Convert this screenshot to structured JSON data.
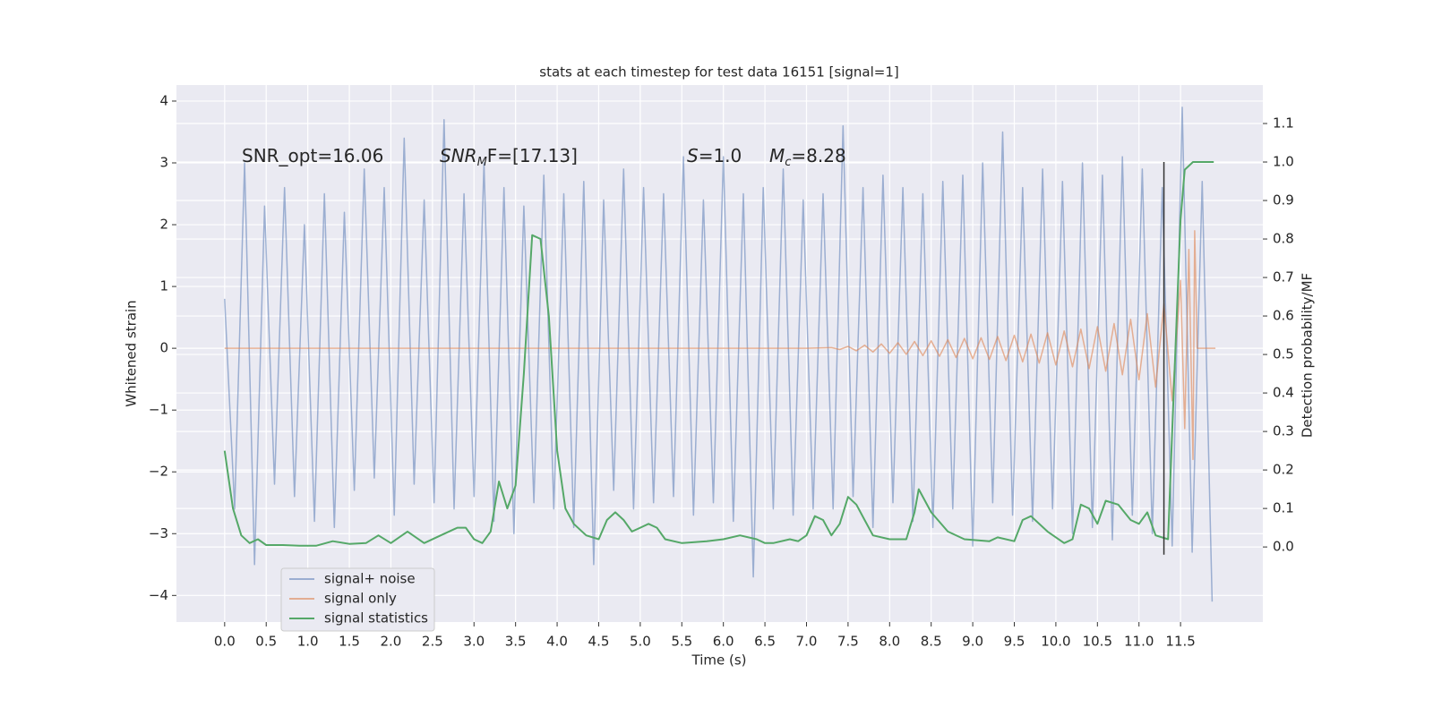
{
  "chart_data": {
    "type": "line",
    "title": "stats at each timestep for test data 16151 [signal=1]",
    "x_label": "Time (s)",
    "y_label": "Whitened strain",
    "y2_label": "Detection probability/MF",
    "annotations": [
      {
        "text": "SNR_opt=16.06"
      },
      {
        "math": "SNR",
        "sub": "M",
        "rest": "F=[17.13]"
      },
      {
        "math": "S",
        "rest": "=1.0"
      },
      {
        "math": "M",
        "sub": "c",
        "rest": "=8.28"
      }
    ],
    "annotation_y": 3.1,
    "xlim": [
      -0.58,
      12.49
    ],
    "ylim": [
      -4.43,
      4.26
    ],
    "y2lim": [
      -0.195,
      1.2
    ],
    "xticks": [
      {
        "value": 0,
        "label": "0.0"
      },
      {
        "value": 0.5,
        "label": "0.5"
      },
      {
        "value": 1,
        "label": "1.0"
      },
      {
        "value": 1.5,
        "label": "1.5"
      },
      {
        "value": 2,
        "label": "2.0"
      },
      {
        "value": 2.5,
        "label": "2.5"
      },
      {
        "value": 3,
        "label": "3.0"
      },
      {
        "value": 3.5,
        "label": "3.5"
      },
      {
        "value": 4,
        "label": "4.0"
      },
      {
        "value": 4.5,
        "label": "4.5"
      },
      {
        "value": 5,
        "label": "5.0"
      },
      {
        "value": 5.5,
        "label": "5.5"
      },
      {
        "value": 6,
        "label": "6.0"
      },
      {
        "value": 6.5,
        "label": "6.5"
      },
      {
        "value": 7,
        "label": "7.0"
      },
      {
        "value": 7.5,
        "label": "7.5"
      },
      {
        "value": 8,
        "label": "8.0"
      },
      {
        "value": 8.5,
        "label": "8.5"
      },
      {
        "value": 9,
        "label": "9.0"
      },
      {
        "value": 9.5,
        "label": "9.5"
      },
      {
        "value": 10,
        "label": "10.0"
      },
      {
        "value": 10.5,
        "label": "10.5"
      },
      {
        "value": 11,
        "label": "11.0"
      },
      {
        "value": 11.5,
        "label": "11.5"
      }
    ],
    "yticks": [
      {
        "value": -4,
        "label": "−4"
      },
      {
        "value": -3,
        "label": "−3"
      },
      {
        "value": -2,
        "label": "−2"
      },
      {
        "value": -1,
        "label": "−1"
      },
      0,
      1,
      2,
      3,
      4
    ],
    "y2ticks": [
      {
        "value": 0,
        "label": "0.0"
      },
      {
        "value": 0.1,
        "label": "0.1"
      },
      {
        "value": 0.2,
        "label": "0.2"
      },
      {
        "value": 0.3,
        "label": "0.3"
      },
      {
        "value": 0.4,
        "label": "0.4"
      },
      {
        "value": 0.5,
        "label": "0.5"
      },
      {
        "value": 0.6,
        "label": "0.6"
      },
      {
        "value": 0.7,
        "label": "0.7"
      },
      {
        "value": 0.8,
        "label": "0.8"
      },
      {
        "value": 0.9,
        "label": "0.9"
      },
      {
        "value": 1,
        "label": "1.0"
      },
      {
        "value": 1.1,
        "label": "1.1"
      }
    ],
    "grid": true,
    "legend": "lower left",
    "series": [
      {
        "name": "signal+ noise",
        "color": "#4c72b0",
        "opacity": 0.5,
        "x": [
          0,
          0.12,
          0.24,
          0.36,
          0.48,
          0.6,
          0.72,
          0.84,
          0.96,
          1.08,
          1.2,
          1.32,
          1.44,
          1.56,
          1.68,
          1.8,
          1.92,
          2.04,
          2.16,
          2.28,
          2.4,
          2.52,
          2.64,
          2.76,
          2.88,
          3,
          3.12,
          3.24,
          3.36,
          3.48,
          3.6,
          3.72,
          3.84,
          3.96,
          4.08,
          4.2,
          4.32,
          4.44,
          4.56,
          4.68,
          4.8,
          4.92,
          5.04,
          5.16,
          5.28,
          5.4,
          5.52,
          5.64,
          5.76,
          5.88,
          6,
          6.12,
          6.24,
          6.36,
          6.48,
          6.6,
          6.72,
          6.84,
          6.96,
          7.08,
          7.2,
          7.32,
          7.44,
          7.56,
          7.68,
          7.8,
          7.92,
          8.04,
          8.16,
          8.28,
          8.4,
          8.52,
          8.64,
          8.76,
          8.88,
          9,
          9.12,
          9.24,
          9.36,
          9.48,
          9.6,
          9.72,
          9.84,
          9.96,
          10.08,
          10.2,
          10.32,
          10.44,
          10.56,
          10.68,
          10.8,
          10.92,
          11.04,
          11.16,
          11.28,
          11.4,
          11.52,
          11.64,
          11.76,
          11.88
        ],
        "values": [
          0.8,
          -2.6,
          3.0,
          -3.5,
          2.3,
          -2.2,
          2.6,
          -2.4,
          2.0,
          -2.8,
          2.5,
          -2.9,
          2.2,
          -2.3,
          2.9,
          -2.1,
          2.6,
          -2.7,
          3.4,
          -2.2,
          2.4,
          -2.5,
          3.7,
          -2.6,
          2.5,
          -2.4,
          3.0,
          -2.8,
          2.6,
          -3.0,
          2.3,
          -2.5,
          2.8,
          -2.6,
          2.5,
          -2.9,
          2.7,
          -3.5,
          2.4,
          -2.3,
          2.9,
          -2.6,
          2.6,
          -2.5,
          2.5,
          -2.4,
          3.1,
          -2.7,
          2.4,
          -2.5,
          3.1,
          -2.8,
          2.5,
          -3.7,
          2.6,
          -2.6,
          2.9,
          -2.7,
          2.4,
          -2.6,
          2.5,
          -2.6,
          3.6,
          -2.4,
          2.6,
          -2.9,
          2.8,
          -2.5,
          2.6,
          -2.8,
          2.5,
          -2.9,
          2.7,
          -2.6,
          2.8,
          -3.2,
          3.0,
          -2.5,
          3.5,
          -2.7,
          2.6,
          -2.8,
          2.9,
          -2.6,
          2.7,
          -3.0,
          3.0,
          -2.9,
          2.8,
          -3.1,
          3.1,
          -2.7,
          2.9,
          -3.0,
          2.6,
          -3.2,
          3.9,
          -3.3,
          2.7,
          -4.1
        ]
      },
      {
        "name": "signal only",
        "color": "#dd8452",
        "opacity": 0.6,
        "x": [
          0,
          7.0,
          7.3,
          7.4,
          7.5,
          7.6,
          7.7,
          7.8,
          7.9,
          8.0,
          8.1,
          8.2,
          8.3,
          8.4,
          8.5,
          8.6,
          8.7,
          8.8,
          8.9,
          9.0,
          9.1,
          9.2,
          9.3,
          9.4,
          9.5,
          9.6,
          9.7,
          9.8,
          9.9,
          10.0,
          10.1,
          10.2,
          10.3,
          10.4,
          10.5,
          10.6,
          10.7,
          10.8,
          10.9,
          11.0,
          11.1,
          11.2,
          11.3,
          11.4,
          11.5,
          11.55,
          11.6,
          11.65,
          11.67,
          11.7,
          11.92
        ],
        "values": [
          0,
          0,
          0.01,
          -0.02,
          0.03,
          -0.04,
          0.05,
          -0.06,
          0.07,
          -0.08,
          0.09,
          -0.1,
          0.11,
          -0.12,
          0.12,
          -0.13,
          0.14,
          -0.15,
          0.16,
          -0.17,
          0.17,
          -0.18,
          0.19,
          -0.2,
          0.21,
          -0.22,
          0.23,
          -0.24,
          0.25,
          -0.27,
          0.28,
          -0.3,
          0.31,
          -0.33,
          0.35,
          -0.37,
          0.4,
          -0.43,
          0.47,
          -0.51,
          0.56,
          -0.63,
          0.72,
          -0.85,
          1.1,
          -1.3,
          1.6,
          -1.8,
          1.9,
          0,
          0
        ]
      },
      {
        "name": "signal statistics",
        "color": "#55a868",
        "opacity": 1,
        "axis": "y2",
        "x": [
          0,
          0.1,
          0.2,
          0.3,
          0.4,
          0.5,
          0.7,
          0.9,
          1.1,
          1.3,
          1.5,
          1.7,
          1.85,
          2.0,
          2.2,
          2.4,
          2.6,
          2.8,
          2.9,
          3.0,
          3.1,
          3.2,
          3.3,
          3.4,
          3.5,
          3.6,
          3.7,
          3.8,
          3.9,
          4.0,
          4.1,
          4.2,
          4.35,
          4.5,
          4.6,
          4.7,
          4.8,
          4.9,
          5.0,
          5.1,
          5.2,
          5.3,
          5.5,
          5.8,
          6.0,
          6.2,
          6.4,
          6.5,
          6.6,
          6.8,
          6.9,
          7.0,
          7.1,
          7.2,
          7.3,
          7.4,
          7.5,
          7.6,
          7.7,
          7.8,
          8.0,
          8.2,
          8.3,
          8.35,
          8.5,
          8.7,
          8.9,
          9.2,
          9.3,
          9.5,
          9.6,
          9.7,
          9.9,
          10.1,
          10.2,
          10.3,
          10.4,
          10.5,
          10.6,
          10.75,
          10.9,
          11.0,
          11.1,
          11.2,
          11.35,
          11.4,
          11.5,
          11.55,
          11.65,
          11.8,
          11.9
        ],
        "values": [
          0.25,
          0.1,
          0.03,
          0.01,
          0.02,
          0.005,
          0.005,
          0.003,
          0.003,
          0.015,
          0.008,
          0.01,
          0.03,
          0.01,
          0.04,
          0.01,
          0.03,
          0.05,
          0.05,
          0.02,
          0.01,
          0.04,
          0.17,
          0.1,
          0.16,
          0.45,
          0.81,
          0.8,
          0.6,
          0.25,
          0.1,
          0.06,
          0.03,
          0.02,
          0.07,
          0.09,
          0.07,
          0.04,
          0.05,
          0.06,
          0.05,
          0.02,
          0.01,
          0.015,
          0.02,
          0.03,
          0.02,
          0.01,
          0.01,
          0.02,
          0.015,
          0.03,
          0.08,
          0.07,
          0.03,
          0.06,
          0.13,
          0.11,
          0.07,
          0.03,
          0.02,
          0.02,
          0.09,
          0.15,
          0.09,
          0.04,
          0.02,
          0.015,
          0.025,
          0.015,
          0.07,
          0.08,
          0.04,
          0.01,
          0.02,
          0.11,
          0.1,
          0.06,
          0.12,
          0.11,
          0.07,
          0.06,
          0.09,
          0.03,
          0.02,
          0.3,
          0.85,
          0.98,
          1.0,
          1.0,
          1.0
        ]
      }
    ],
    "vline": {
      "x": 11.3,
      "y2": [
        -0.02,
        1.0
      ],
      "color": "#333333"
    }
  }
}
